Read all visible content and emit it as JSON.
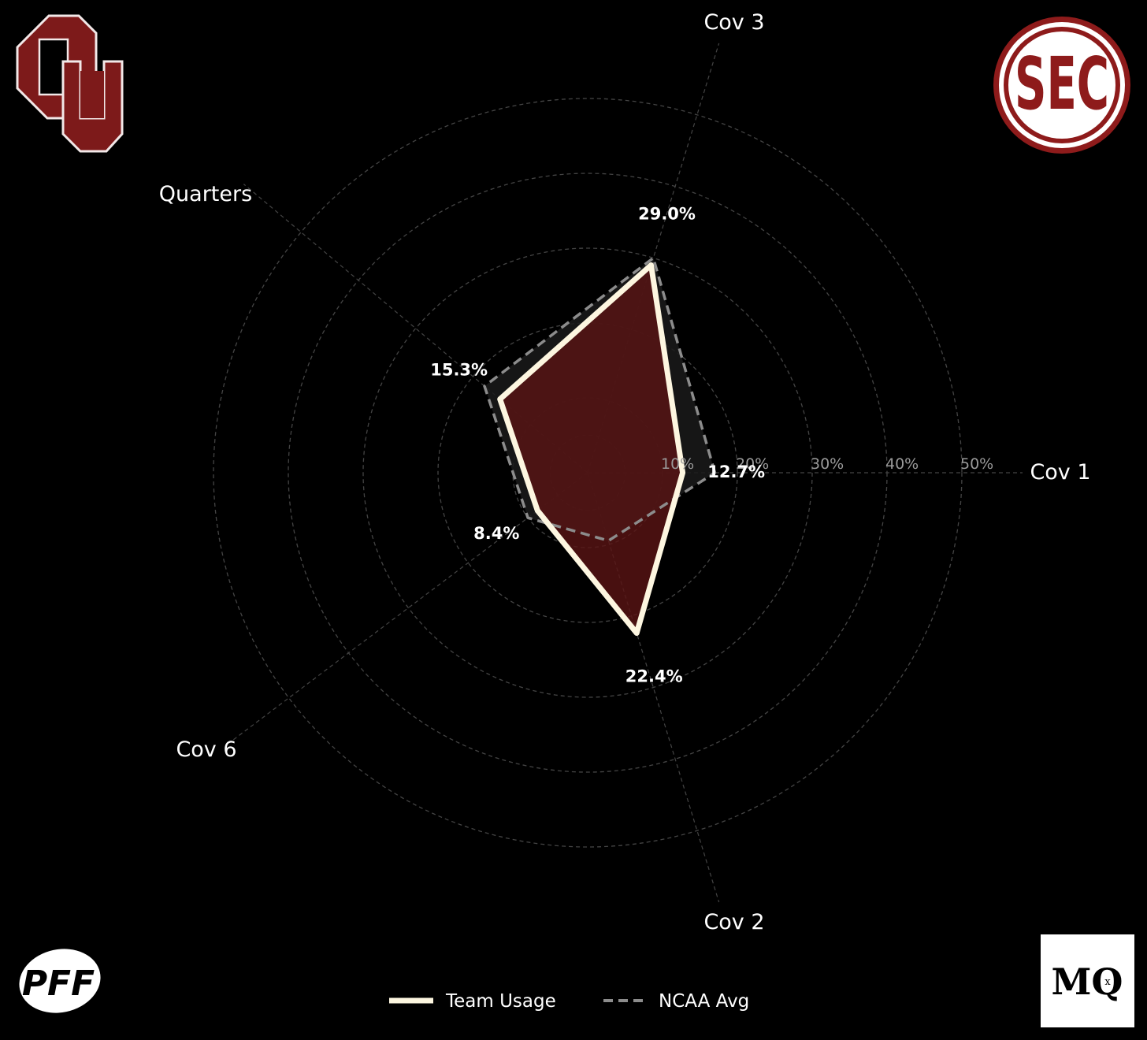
{
  "logos": {
    "team": {
      "name": "OU",
      "icon": "ou-logo-icon",
      "color": "#7d1a1a"
    },
    "conference": {
      "name": "SEC",
      "icon": "sec-logo-icon",
      "color": "#8e1b1b"
    },
    "source": {
      "name": "PFF",
      "icon": "pff-logo-icon"
    },
    "brand": {
      "name": "MQ",
      "mark": "x",
      "icon": "mq-logo-icon"
    }
  },
  "legend": {
    "team_label": "Team Usage",
    "avg_label": "NCAA Avg"
  },
  "colors": {
    "background": "#000000",
    "team_line": "#fdf6e0",
    "team_fill": "#5a1414",
    "avg_line": "#8c8c8c",
    "avg_fill": "#1a1a1a",
    "grid": "#444444",
    "label": "#ffffff",
    "tick": "#9a9a9a"
  },
  "chart_data": {
    "type": "radar",
    "categories": [
      "Cov 1",
      "Cov 3",
      "Quarters",
      "Cov 6",
      "Cov 2"
    ],
    "radial_ticks": [
      "10%",
      "20%",
      "30%",
      "40%",
      "50%"
    ],
    "rlim": [
      0,
      50
    ],
    "series": [
      {
        "name": "Team Usage",
        "values": [
          12.7,
          29.0,
          15.3,
          8.4,
          22.4
        ],
        "value_labels": [
          "12.7%",
          "29.0%",
          "15.3%",
          "8.4%",
          "22.4%"
        ]
      },
      {
        "name": "NCAA Avg",
        "values": [
          17.0,
          30.0,
          18.0,
          10.0,
          9.5
        ]
      }
    ],
    "grid": true,
    "legend": "bottom-center"
  }
}
